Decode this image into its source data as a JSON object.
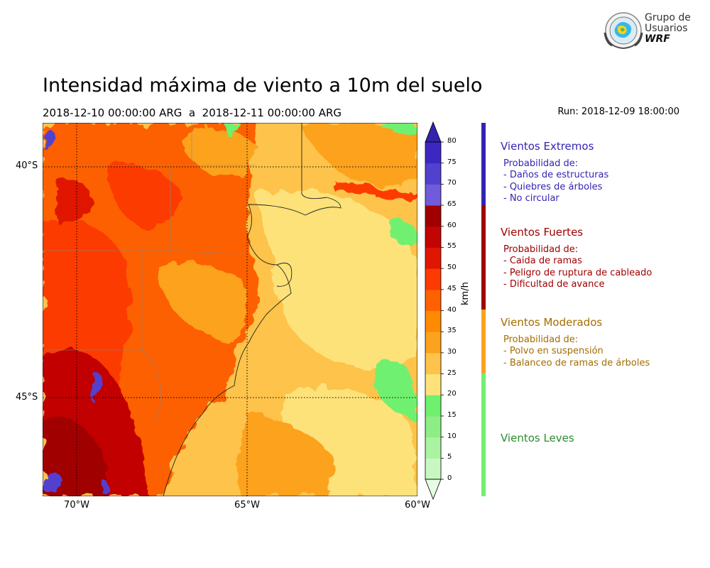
{
  "header": {
    "title": "Intensidad máxima de viento a 10m del suelo",
    "period": "2018-12-10 00:00:00 ARG  a  2018-12-11 00:00:00 ARG",
    "run": "Run: 2018-12-09 18:00:00"
  },
  "logo": {
    "line1": "Grupo de",
    "line2": "Usuarios",
    "line3": "WRF",
    "icon": "globe-emblem-icon"
  },
  "map": {
    "lat_labels": [
      "40°S",
      "45°S"
    ],
    "lon_labels": [
      "70°W",
      "65°W",
      "60°W"
    ],
    "gridlines": "dotted",
    "extent": {
      "lon_min": -71,
      "lon_max": -60,
      "lat_min": -48.1,
      "lat_max": -39
    }
  },
  "colorbar": {
    "unit": "km/h",
    "ticks": [
      "0",
      "5",
      "10",
      "15",
      "20",
      "25",
      "30",
      "35",
      "40",
      "45",
      "50",
      "55",
      "60",
      "65",
      "70",
      "75",
      "80"
    ],
    "colors": [
      "#e6fde3",
      "#c8f8c1",
      "#aaf3a0",
      "#8cee84",
      "#6ff06f",
      "#fde27a",
      "#fdc34a",
      "#fca21d",
      "#fd8a02",
      "#fd6100",
      "#fc3a02",
      "#e01603",
      "#c20402",
      "#a10000",
      "#6f5bdb",
      "#5241cf",
      "#3c28c1",
      "#3222ae"
    ],
    "extend": "both"
  },
  "categories": [
    {
      "title": "Vientos Extremos",
      "color": "#3524b3",
      "lines": [
        "Probabilidad de:",
        "- Daños de estructuras",
        "- Quiebres de árboles",
        "- No circular"
      ]
    },
    {
      "title": "Vientos Fuertes",
      "color": "#a00000",
      "lines": [
        "Probabilidad de:",
        "- Caida de ramas",
        "- Peligro de ruptura de cableado",
        "- Dificultad de avance"
      ]
    },
    {
      "title": "Vientos Moderados",
      "color": "#a36d00",
      "lines": [
        "Probabilidad de:",
        "- Polvo en suspensión",
        "- Balanceo de ramas de árboles"
      ]
    },
    {
      "title": "Vientos Leves",
      "color": "#2e8b2e",
      "lines": []
    }
  ],
  "category_bar_colors": [
    "#3524b3",
    "#a00000",
    "#fca21d",
    "#6ff06f"
  ]
}
